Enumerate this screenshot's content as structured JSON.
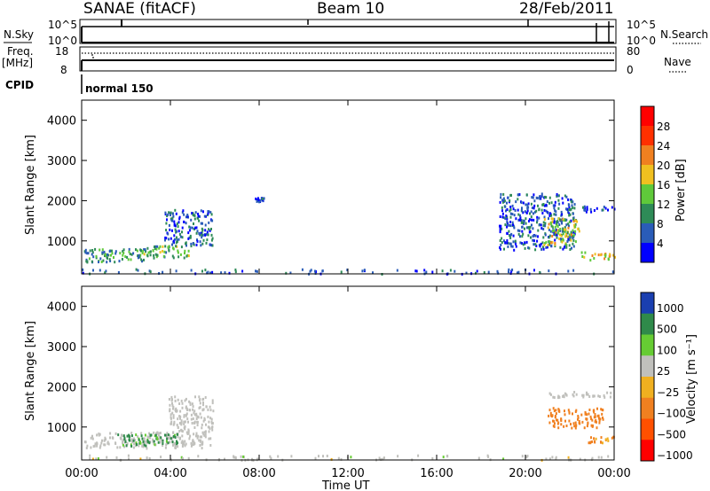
{
  "header": {
    "station": "SANAE (fitACF)",
    "beam": "Beam 10",
    "date": "28/Feb/2011"
  },
  "strips": {
    "nsky_label": "N.Sky",
    "nsky_top": "10^5",
    "nsky_bottom": "10^0",
    "nsearch_label": "N.Search",
    "nsearch_top": "10^5",
    "nsearch_bottom": "10^0",
    "freq_label": "Freq.",
    "freq_unit": "[MHz]",
    "freq_top": "18",
    "freq_bottom": "8",
    "nave_label": "Nave",
    "nave_top": "80",
    "nave_bottom": "0",
    "cpid_label": "CPID",
    "cpid_value": "normal 150"
  },
  "colors": {
    "power": [
      "#0000ff",
      "#2a5cb8",
      "#2e8b57",
      "#5fc93a",
      "#f0c020",
      "#f08020",
      "#ff3000",
      "#ff0000"
    ],
    "velocity": [
      "#1a3fb0",
      "#2f8a4a",
      "#66cc33",
      "#c0c0bc",
      "#f0b020",
      "#f08020",
      "#ff5000",
      "#ff0000"
    ],
    "ground_scatter": "#c0c0bc"
  },
  "chart_data": [
    {
      "type": "heatmap",
      "panel": "power",
      "ylabel": "Slant Range [km]",
      "xlabel": "Time UT",
      "x_ticks": [
        "00:00",
        "04:00",
        "08:00",
        "12:00",
        "16:00",
        "20:00",
        "00:00"
      ],
      "y_ticks": [
        "1000",
        "2000",
        "3000",
        "4000"
      ],
      "xlim_hours": [
        0,
        24
      ],
      "ylim_km": [
        180,
        4500
      ],
      "colorbar_label": "Power [dB]",
      "colorbar_ticks": [
        "4",
        "8",
        "12",
        "16",
        "20",
        "24",
        "28"
      ],
      "colorbar_range": [
        0,
        32
      ],
      "echo_regions": [
        {
          "t0": 0.1,
          "t1": 3.0,
          "r0": 500,
          "r1": 850,
          "power": 10
        },
        {
          "t0": 2.6,
          "t1": 4.9,
          "r0": 600,
          "r1": 900,
          "power": 12
        },
        {
          "t0": 3.7,
          "t1": 5.9,
          "r0": 900,
          "r1": 1800,
          "power": 6
        },
        {
          "t0": 7.8,
          "t1": 8.2,
          "r0": 2000,
          "r1": 2100,
          "power": 4
        },
        {
          "t0": 18.8,
          "t1": 22.2,
          "r0": 800,
          "r1": 2200,
          "power": 6
        },
        {
          "t0": 20.8,
          "t1": 22.4,
          "r0": 900,
          "r1": 1600,
          "power": 16
        },
        {
          "t0": 22.5,
          "t1": 24.0,
          "r0": 550,
          "r1": 750,
          "power": 18
        },
        {
          "t0": 22.5,
          "t1": 24.0,
          "r0": 1750,
          "r1": 1900,
          "power": 4
        }
      ]
    },
    {
      "type": "heatmap",
      "panel": "velocity",
      "ylabel": "Slant Range [km]",
      "xlabel": "Time UT",
      "x_ticks": [
        "00:00",
        "04:00",
        "08:00",
        "12:00",
        "16:00",
        "20:00",
        "00:00"
      ],
      "y_ticks": [
        "1000",
        "2000",
        "3000",
        "4000"
      ],
      "xlim_hours": [
        0,
        24
      ],
      "ylim_km": [
        180,
        4500
      ],
      "colorbar_label": "Velocity [m s⁻¹]",
      "colorbar_ticks": [
        "1000",
        "500",
        "100",
        "25",
        "−25",
        "−100",
        "−500",
        "−1000"
      ],
      "echo_regions": [
        {
          "t0": 0.1,
          "t1": 5.8,
          "r0": 500,
          "r1": 900,
          "velocity": 0
        },
        {
          "t0": 1.6,
          "t1": 4.3,
          "r0": 550,
          "r1": 850,
          "velocity": 150
        },
        {
          "t0": 3.9,
          "t1": 5.9,
          "r0": 900,
          "r1": 1800,
          "velocity": 0
        },
        {
          "t0": 21.0,
          "t1": 23.5,
          "r0": 1000,
          "r1": 1500,
          "velocity": -300
        },
        {
          "t0": 22.8,
          "t1": 24.0,
          "r0": 600,
          "r1": 800,
          "velocity": -150
        },
        {
          "t0": 21.0,
          "t1": 24.0,
          "r0": 1750,
          "r1": 1900,
          "velocity": 0
        }
      ]
    }
  ]
}
